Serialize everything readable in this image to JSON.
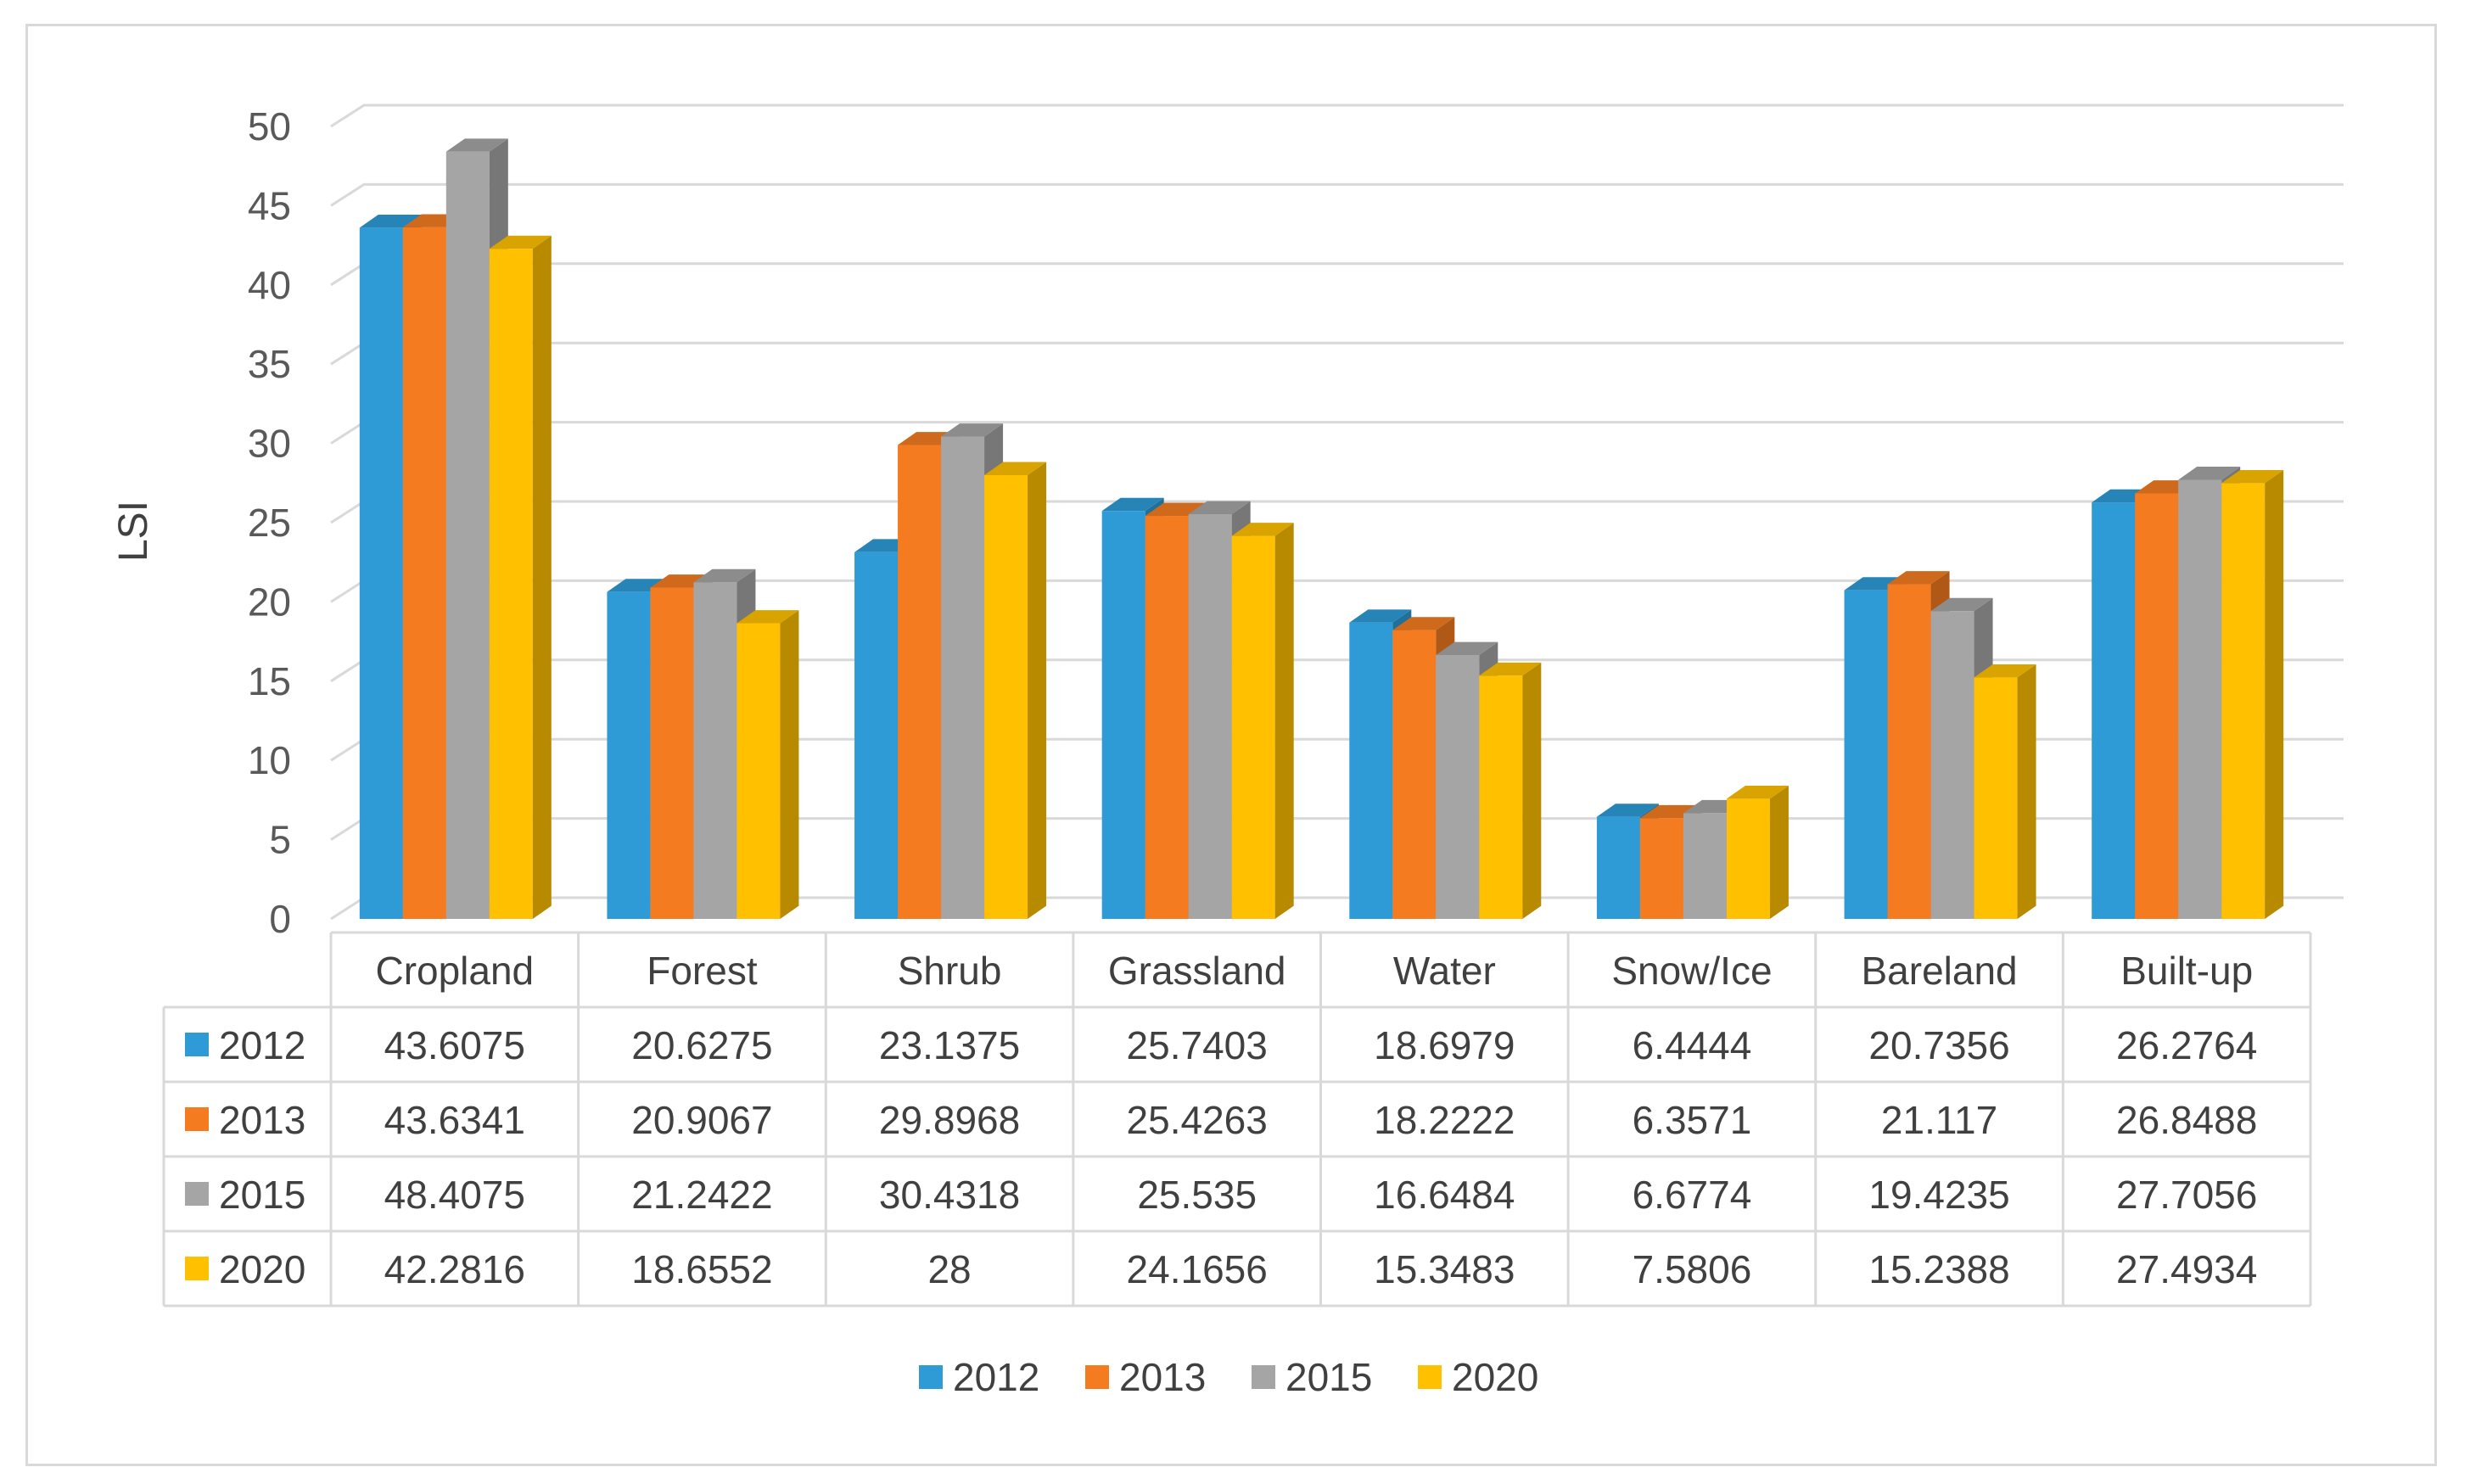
{
  "chart_data": {
    "type": "bar",
    "ylabel": "LSI",
    "ylim": [
      0,
      50
    ],
    "yticks": [
      "0",
      "5",
      "10",
      "15",
      "20",
      "25",
      "30",
      "35",
      "40",
      "45",
      "50"
    ],
    "categories": [
      "Cropland",
      "Forest",
      "Shrub",
      "Grassland",
      "Water",
      "Snow/Ice",
      "Bareland",
      "Built-up"
    ],
    "series": [
      {
        "name": "2012",
        "color": "#2E9BD6",
        "values": [
          43.6075,
          20.6275,
          23.1375,
          25.7403,
          18.6979,
          6.4444,
          20.7356,
          26.2764
        ],
        "labels": [
          "43.6075",
          "20.6275",
          "23.1375",
          "25.7403",
          "18.6979",
          "6.4444",
          "20.7356",
          "26.2764"
        ]
      },
      {
        "name": "2013",
        "color": "#F47B20",
        "values": [
          43.6341,
          20.9067,
          29.8968,
          25.4263,
          18.2222,
          6.3571,
          21.117,
          26.8488
        ],
        "labels": [
          "43.6341",
          "20.9067",
          "29.8968",
          "25.4263",
          "18.2222",
          "6.3571",
          "21.117",
          "26.8488"
        ]
      },
      {
        "name": "2015",
        "color": "#A5A5A5",
        "values": [
          48.4075,
          21.2422,
          30.4318,
          25.535,
          16.6484,
          6.6774,
          19.4235,
          27.7056
        ],
        "labels": [
          "48.4075",
          "21.2422",
          "30.4318",
          "25.535",
          "16.6484",
          "6.6774",
          "19.4235",
          "27.7056"
        ]
      },
      {
        "name": "2020",
        "color": "#FFC000",
        "values": [
          42.2816,
          18.6552,
          28,
          24.1656,
          15.3483,
          7.5806,
          15.2388,
          27.4934
        ],
        "labels": [
          "42.2816",
          "18.6552",
          "28",
          "24.1656",
          "15.3483",
          "7.5806",
          "15.2388",
          "27.4934"
        ]
      }
    ],
    "legend_position": "bottom",
    "grid": true,
    "data_table": true
  }
}
